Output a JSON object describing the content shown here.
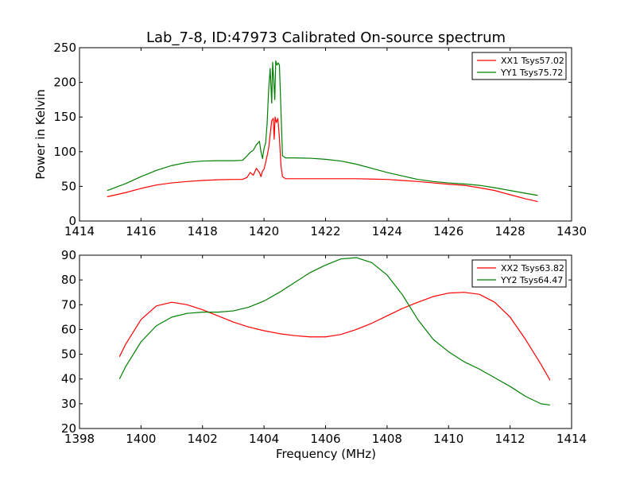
{
  "figure": {
    "title": "Lab_7-8, ID:47973 Calibrated On-source spectrum",
    "xlabel": "Frequency (MHz)",
    "ylabel": "Power in Kelvin"
  },
  "chart_data": [
    {
      "type": "line",
      "title": "Lab_7-8, ID:47973 Calibrated On-source spectrum",
      "xlabel": "",
      "ylabel": "Power in Kelvin",
      "xlim": [
        1414,
        1430
      ],
      "ylim": [
        0,
        250
      ],
      "xticks": [
        1414,
        1416,
        1418,
        1420,
        1422,
        1424,
        1426,
        1428,
        1430
      ],
      "yticks": [
        0,
        50,
        100,
        150,
        200,
        250
      ],
      "grid": false,
      "legend_position": "top-right",
      "series": [
        {
          "name": "XX1 Tsys57.02",
          "color": "#ff0000",
          "x": [
            1414.9,
            1415.5,
            1416.0,
            1416.5,
            1417.0,
            1417.5,
            1418.0,
            1418.5,
            1419.0,
            1419.3,
            1419.45,
            1419.55,
            1419.65,
            1419.75,
            1419.85,
            1419.9,
            1419.95,
            1420.0,
            1420.05,
            1420.1,
            1420.15,
            1420.2,
            1420.25,
            1420.3,
            1420.33,
            1420.36,
            1420.4,
            1420.45,
            1420.5,
            1420.55,
            1420.6,
            1420.7,
            1421.0,
            1421.5,
            1422.0,
            1422.5,
            1423.0,
            1423.5,
            1424.0,
            1424.5,
            1425.0,
            1425.5,
            1426.0,
            1426.5,
            1427.0,
            1427.5,
            1428.0,
            1428.5,
            1428.9
          ],
          "y": [
            35,
            41,
            47,
            52,
            55,
            57,
            58.5,
            59.5,
            60,
            60,
            63,
            70,
            66,
            76,
            70,
            64,
            72,
            75,
            84,
            94,
            105,
            125,
            145,
            148,
            118,
            150,
            142,
            148,
            120,
            80,
            64,
            61,
            61,
            61,
            61,
            61,
            61,
            60.5,
            60,
            58.5,
            57,
            55,
            53,
            51.5,
            48,
            44,
            38,
            32,
            28
          ]
        },
        {
          "name": "YY1 Tsys75.72",
          "color": "#008000",
          "x": [
            1414.9,
            1415.5,
            1416.0,
            1416.5,
            1417.0,
            1417.5,
            1418.0,
            1418.5,
            1419.0,
            1419.3,
            1419.45,
            1419.55,
            1419.65,
            1419.75,
            1419.85,
            1419.9,
            1419.95,
            1420.0,
            1420.05,
            1420.1,
            1420.15,
            1420.2,
            1420.25,
            1420.28,
            1420.32,
            1420.35,
            1420.38,
            1420.42,
            1420.46,
            1420.5,
            1420.55,
            1420.6,
            1420.7,
            1421.0,
            1421.5,
            1422.0,
            1422.5,
            1423.0,
            1423.5,
            1424.0,
            1424.5,
            1425.0,
            1425.5,
            1426.0,
            1426.5,
            1427.0,
            1427.5,
            1428.0,
            1428.5,
            1428.9
          ],
          "y": [
            44,
            54,
            64,
            73,
            80,
            84.5,
            86.5,
            87,
            87,
            87.5,
            94,
            99,
            102,
            110,
            115,
            100,
            90,
            105,
            112,
            140,
            190,
            220,
            170,
            229,
            200,
            175,
            231,
            225,
            228,
            225,
            160,
            94,
            91,
            91,
            90.5,
            89,
            86.5,
            82,
            76,
            70,
            65,
            60,
            57,
            55,
            53.5,
            51.5,
            48,
            44,
            40,
            37
          ]
        }
      ]
    },
    {
      "type": "line",
      "title": "",
      "xlabel": "Frequency (MHz)",
      "ylabel": "",
      "xlim": [
        1398,
        1414
      ],
      "ylim": [
        20,
        90
      ],
      "xticks": [
        1398,
        1400,
        1402,
        1404,
        1406,
        1408,
        1410,
        1412,
        1414
      ],
      "yticks": [
        20,
        30,
        40,
        50,
        60,
        70,
        80,
        90
      ],
      "grid": false,
      "legend_position": "top-right",
      "series": [
        {
          "name": "XX2 Tsys63.82",
          "color": "#ff0000",
          "x": [
            1399.3,
            1399.5,
            1400.0,
            1400.5,
            1401.0,
            1401.5,
            1402.0,
            1402.5,
            1403.0,
            1403.5,
            1404.0,
            1404.5,
            1405.0,
            1405.5,
            1406.0,
            1406.5,
            1407.0,
            1407.5,
            1408.0,
            1408.5,
            1409.0,
            1409.5,
            1410.0,
            1410.5,
            1411.0,
            1411.5,
            1412.0,
            1412.5,
            1413.0,
            1413.3
          ],
          "y": [
            49,
            54,
            64,
            69.5,
            71,
            70,
            68,
            65.5,
            63,
            61,
            59.5,
            58.3,
            57.5,
            57,
            57,
            58,
            60,
            62.5,
            65.5,
            68.5,
            71,
            73.3,
            74.7,
            75,
            74.2,
            71,
            65,
            56,
            46,
            39.5
          ]
        },
        {
          "name": "YY2 Tsys64.47",
          "color": "#008000",
          "x": [
            1399.3,
            1399.5,
            1400.0,
            1400.5,
            1401.0,
            1401.5,
            1402.0,
            1402.5,
            1403.0,
            1403.5,
            1404.0,
            1404.5,
            1405.0,
            1405.5,
            1406.0,
            1406.5,
            1407.0,
            1407.5,
            1408.0,
            1408.5,
            1409.0,
            1409.5,
            1410.0,
            1410.5,
            1411.0,
            1411.5,
            1412.0,
            1412.5,
            1413.0,
            1413.3
          ],
          "y": [
            40,
            45,
            55,
            61.5,
            65,
            66.5,
            67,
            67,
            67.5,
            69,
            71.5,
            75,
            79,
            83,
            86,
            88.5,
            89,
            87,
            82,
            74,
            64,
            56,
            51,
            47,
            44,
            40.5,
            37,
            33,
            30,
            29.5
          ]
        }
      ]
    }
  ]
}
